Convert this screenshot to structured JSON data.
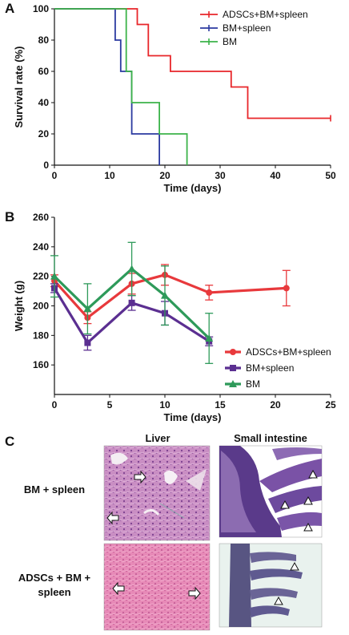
{
  "panels": {
    "a": {
      "letter": "A"
    },
    "b": {
      "letter": "B"
    },
    "c": {
      "letter": "C"
    }
  },
  "chart_data": [
    {
      "type": "line",
      "panel": "A",
      "step": true,
      "xlabel": "Time (days)",
      "ylabel": "Survival rate (%)",
      "xlim": [
        0,
        50
      ],
      "ylim": [
        0,
        100
      ],
      "xticks": [
        0,
        10,
        20,
        30,
        40,
        50
      ],
      "yticks": [
        0,
        20,
        40,
        60,
        80,
        100
      ],
      "legend_position": "top-right",
      "series": [
        {
          "name": "ADSCs+BM+spleen",
          "color": "#e8262a",
          "x": [
            0,
            15,
            17,
            21,
            32,
            35,
            50
          ],
          "y": [
            100,
            90,
            70,
            60,
            50,
            30,
            30
          ]
        },
        {
          "name": "BM+spleen",
          "color": "#2b3aa0",
          "x": [
            0,
            11,
            12,
            14,
            19
          ],
          "y": [
            100,
            80,
            60,
            20,
            0
          ]
        },
        {
          "name": "BM",
          "color": "#3cb34a",
          "x": [
            0,
            13,
            14,
            19,
            24
          ],
          "y": [
            100,
            60,
            40,
            20,
            0
          ]
        }
      ]
    },
    {
      "type": "line",
      "panel": "B",
      "xlabel": "Time (days)",
      "ylabel": "Weight (g)",
      "xlim": [
        0,
        25
      ],
      "ylim": [
        140,
        260
      ],
      "xticks": [
        0,
        5,
        10,
        15,
        20,
        25
      ],
      "yticks": [
        160,
        180,
        200,
        220,
        240,
        260
      ],
      "legend_position": "bottom-right",
      "series": [
        {
          "name": "ADSCs+BM+spleen",
          "color": "#e8393c",
          "marker": "circle",
          "x": [
            0,
            3,
            7,
            10,
            14,
            21
          ],
          "y": [
            217,
            192,
            215,
            221,
            209,
            212
          ],
          "err": [
            4,
            4,
            7,
            7,
            5,
            12
          ]
        },
        {
          "name": "BM+spleen",
          "color": "#5b2f91",
          "marker": "square",
          "x": [
            0,
            3,
            7,
            10,
            14
          ],
          "y": [
            212,
            175,
            202,
            195,
            176
          ],
          "err": [
            3,
            5,
            5,
            8,
            3
          ]
        },
        {
          "name": "BM",
          "color": "#2e9a5a",
          "marker": "triangle",
          "x": [
            0,
            3,
            7,
            10,
            14
          ],
          "y": [
            220,
            198,
            225,
            207,
            178
          ],
          "err": [
            14,
            17,
            18,
            20,
            17
          ]
        }
      ]
    }
  ],
  "panel_c": {
    "col_headers": [
      "Liver",
      "Small intestine"
    ],
    "row_labels": [
      [
        "BM + spleen"
      ],
      [
        "ADSCs + BM +",
        "spleen"
      ]
    ]
  }
}
